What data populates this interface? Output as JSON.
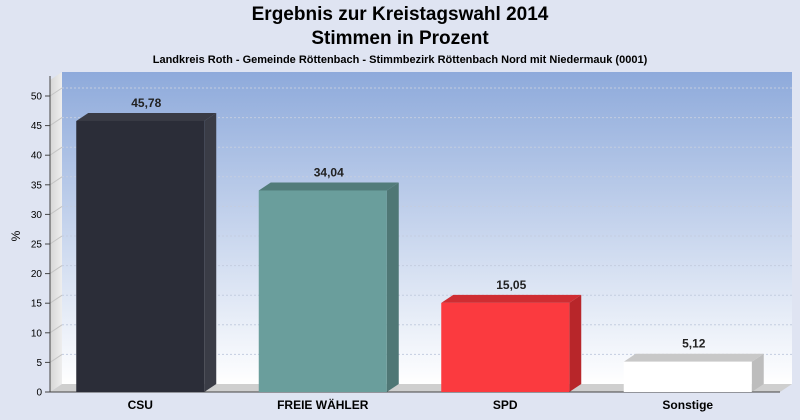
{
  "chart_data": {
    "type": "bar",
    "title": "Ergebnis zur Kreistagswahl 2014",
    "title_line2": "Stimmen in Prozent",
    "subtitle": "Landkreis Roth - Gemeinde Röttenbach - Stimmbezirk Röttenbach Nord mit Niedermauk (0001)",
    "ylabel": "%",
    "ylim": [
      0,
      50
    ],
    "yticks": [
      0,
      5,
      10,
      15,
      20,
      25,
      30,
      35,
      40,
      45,
      50
    ],
    "grid": true,
    "categories": [
      "CSU",
      "FREIE WÄHLER",
      "SPD",
      "Sonstige"
    ],
    "values": [
      45.78,
      34.04,
      15.05,
      5.12
    ],
    "value_labels": [
      "45,78",
      "34,04",
      "15,05",
      "5,12"
    ],
    "colors": [
      "#2b2d38",
      "#6a9e9c",
      "#fb3a3f",
      "#ffffff"
    ],
    "side_colors": [
      "#3a3c46",
      "#4f7775",
      "#b8262a",
      "#bdbdbd"
    ],
    "top_colors": [
      "#393b45",
      "#527c7a",
      "#cf2d32",
      "#c8c8c8"
    ]
  }
}
